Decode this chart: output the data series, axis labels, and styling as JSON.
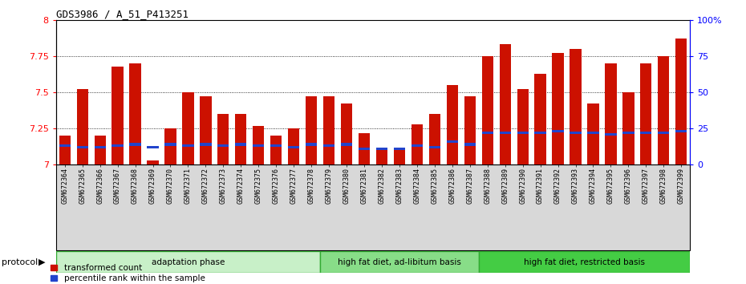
{
  "title": "GDS3986 / A_51_P413251",
  "samples": [
    "GSM672364",
    "GSM672365",
    "GSM672366",
    "GSM672367",
    "GSM672368",
    "GSM672369",
    "GSM672370",
    "GSM672371",
    "GSM672372",
    "GSM672373",
    "GSM672374",
    "GSM672375",
    "GSM672376",
    "GSM672377",
    "GSM672378",
    "GSM672379",
    "GSM672380",
    "GSM672381",
    "GSM672382",
    "GSM672383",
    "GSM672384",
    "GSM672385",
    "GSM672386",
    "GSM672387",
    "GSM672388",
    "GSM672389",
    "GSM672390",
    "GSM672391",
    "GSM672392",
    "GSM672393",
    "GSM672394",
    "GSM672395",
    "GSM672396",
    "GSM672397",
    "GSM672398",
    "GSM672399"
  ],
  "red_values": [
    7.2,
    7.52,
    7.2,
    7.68,
    7.7,
    7.03,
    7.25,
    7.5,
    7.47,
    7.35,
    7.35,
    7.27,
    7.2,
    7.25,
    7.47,
    7.47,
    7.42,
    7.22,
    7.1,
    7.1,
    7.28,
    7.35,
    7.55,
    7.47,
    7.75,
    7.83,
    7.52,
    7.63,
    7.77,
    7.8,
    7.42,
    7.7,
    7.5,
    7.7,
    7.75,
    7.87
  ],
  "blue_values": [
    7.13,
    7.12,
    7.12,
    7.13,
    7.14,
    7.12,
    7.14,
    7.13,
    7.14,
    7.13,
    7.14,
    7.13,
    7.13,
    7.12,
    7.14,
    7.13,
    7.14,
    7.11,
    7.11,
    7.11,
    7.13,
    7.12,
    7.16,
    7.14,
    7.22,
    7.22,
    7.22,
    7.22,
    7.23,
    7.22,
    7.22,
    7.21,
    7.22,
    7.22,
    7.22,
    7.23
  ],
  "groups": [
    {
      "label": "adaptation phase",
      "start": 0,
      "end": 15,
      "color": "#c8f0c8"
    },
    {
      "label": "high fat diet, ad-libitum basis",
      "start": 15,
      "end": 24,
      "color": "#88dd88"
    },
    {
      "label": "high fat diet, restricted basis",
      "start": 24,
      "end": 36,
      "color": "#44cc44"
    }
  ],
  "ymin": 7.0,
  "ymax": 8.0,
  "yticks": [
    7.0,
    7.25,
    7.5,
    7.75,
    8.0
  ],
  "ytick_labels": [
    "7",
    "7.25",
    "7.5",
    "7.75",
    "8"
  ],
  "right_ytick_percents": [
    0,
    25,
    50,
    75,
    100
  ],
  "right_ytick_labels": [
    "0",
    "25",
    "50",
    "75",
    "100%"
  ],
  "bar_color": "#cc1100",
  "blue_color": "#2244cc",
  "protocol_label": "protocol",
  "legend_red": "transformed count",
  "legend_blue": "percentile rank within the sample",
  "xtick_bg": "#d8d8d8"
}
